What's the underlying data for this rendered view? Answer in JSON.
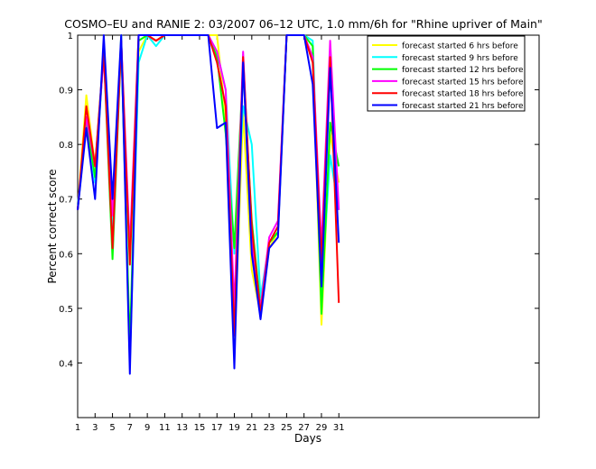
{
  "chart_data": {
    "type": "line",
    "title": "COSMO–EU and RANIE 2: 03/2007 06–12 UTC, 1.0 mm/6h for \"Rhine upriver of Main\"",
    "xlabel": "Days",
    "ylabel": "Percent correct score",
    "xlim": [
      1,
      54
    ],
    "ylim": [
      0.3,
      1.0
    ],
    "x_ticks": [
      1,
      3,
      5,
      7,
      9,
      11,
      13,
      15,
      17,
      19,
      21,
      23,
      25,
      27,
      29,
      31
    ],
    "y_ticks": [
      0.4,
      0.5,
      0.6,
      0.7,
      0.8,
      0.9,
      1
    ],
    "y_tick_labels": [
      "0.4",
      "0.5",
      "0.6",
      "0.7",
      "0.8",
      "0.9",
      "1"
    ],
    "grid": false,
    "legend_position": "top-right",
    "x": [
      1,
      2,
      3,
      4,
      5,
      6,
      7,
      8,
      9,
      10,
      11,
      12,
      13,
      14,
      15,
      16,
      17,
      18,
      19,
      20,
      21,
      22,
      23,
      24,
      25,
      26,
      27,
      28,
      29,
      30,
      31
    ],
    "series": [
      {
        "name": "forecast started 6 hrs before",
        "color": "#ffff00",
        "values": [
          0.68,
          0.89,
          0.76,
          0.97,
          0.64,
          1.0,
          0.4,
          0.97,
          1.0,
          0.99,
          1.0,
          1.0,
          1.0,
          1.0,
          1.0,
          1.0,
          1.0,
          0.85,
          0.42,
          0.86,
          0.57,
          0.49,
          0.61,
          0.64,
          1.0,
          1.0,
          1.0,
          0.96,
          0.47,
          0.82,
          0.73
        ]
      },
      {
        "name": "forecast started 9 hrs before",
        "color": "#00ffff",
        "values": [
          0.69,
          0.84,
          0.73,
          0.97,
          0.63,
          1.0,
          0.4,
          0.95,
          1.0,
          0.98,
          1.0,
          1.0,
          1.0,
          1.0,
          1.0,
          1.0,
          0.97,
          0.9,
          0.6,
          0.87,
          0.8,
          0.52,
          0.62,
          0.64,
          1.0,
          1.0,
          1.0,
          0.99,
          0.53,
          0.78,
          0.68
        ]
      },
      {
        "name": "forecast started 12 hrs before",
        "color": "#00ff00",
        "values": [
          0.68,
          0.84,
          0.74,
          0.97,
          0.59,
          0.99,
          0.43,
          0.99,
          1.0,
          0.99,
          1.0,
          1.0,
          1.0,
          1.0,
          1.0,
          1.0,
          0.96,
          0.82,
          0.61,
          0.94,
          0.66,
          0.5,
          0.62,
          0.64,
          1.0,
          1.0,
          1.0,
          0.98,
          0.49,
          0.84,
          0.76
        ]
      },
      {
        "name": "forecast started 15 hrs before",
        "color": "#ff00ff",
        "values": [
          0.68,
          0.85,
          0.76,
          0.96,
          0.67,
          0.99,
          0.61,
          1.0,
          1.0,
          0.99,
          1.0,
          1.0,
          1.0,
          1.0,
          1.0,
          1.0,
          0.97,
          0.9,
          0.5,
          0.97,
          0.62,
          0.5,
          0.63,
          0.66,
          1.0,
          1.0,
          1.0,
          0.96,
          0.61,
          0.99,
          0.68
        ]
      },
      {
        "name": "forecast started 18 hrs before",
        "color": "#ff0000",
        "values": [
          0.68,
          0.87,
          0.76,
          0.97,
          0.61,
          0.99,
          0.58,
          1.0,
          1.0,
          0.99,
          1.0,
          1.0,
          1.0,
          1.0,
          1.0,
          1.0,
          0.95,
          0.87,
          0.45,
          0.96,
          0.65,
          0.49,
          0.62,
          0.65,
          1.0,
          1.0,
          1.0,
          0.95,
          0.58,
          0.96,
          0.51
        ]
      },
      {
        "name": "forecast started 21 hrs before",
        "color": "#0000ff",
        "values": [
          0.68,
          0.83,
          0.7,
          1.0,
          0.7,
          1.0,
          0.38,
          1.0,
          1.0,
          1.0,
          1.0,
          1.0,
          1.0,
          1.0,
          1.0,
          1.0,
          0.83,
          0.84,
          0.39,
          0.95,
          0.6,
          0.48,
          0.61,
          0.63,
          1.0,
          1.0,
          1.0,
          0.91,
          0.54,
          0.94,
          0.62
        ]
      }
    ]
  }
}
